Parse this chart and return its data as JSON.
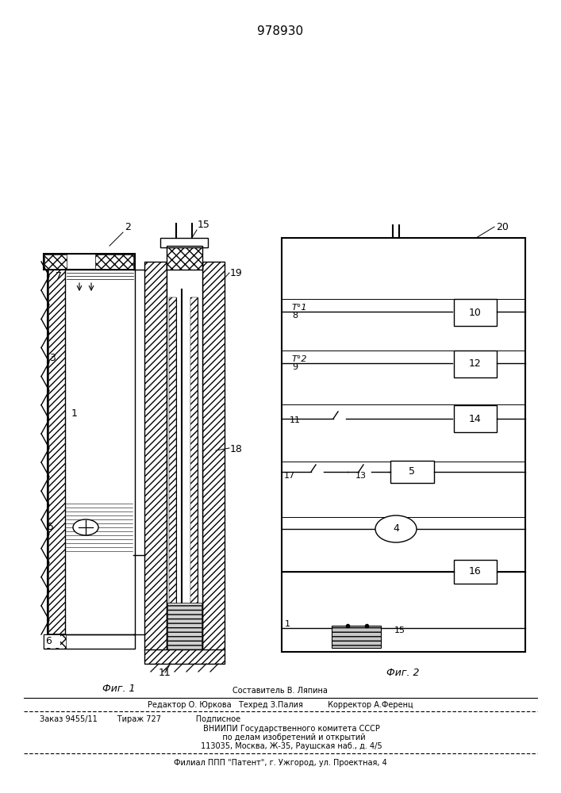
{
  "title": "978930",
  "fig1_label": "Фиг. 1",
  "fig2_label": "Фиг. 2",
  "background_color": "#ffffff",
  "line_color": "#000000",
  "footer_lines": [
    "Составитель В. Ляпина",
    "Редактор О. Юркова   Техред З.Палия          Корректор А.Ференц",
    "Заказ 9455/11        Тираж 727              Подписное",
    "         ВНИИПИ Государственного комитета СССР",
    "           по делам изобретений и открытий",
    "         113035, Москва, Ж-35, Раушская наб., д. 4/5",
    "Филиал ППП \"Патент\", г. Ужгород, ул. Проектная, 4"
  ]
}
